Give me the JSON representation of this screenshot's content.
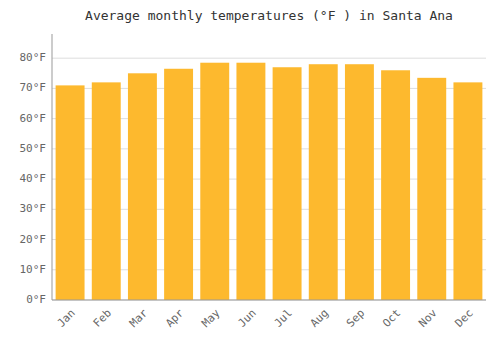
{
  "chart_data": {
    "type": "bar",
    "title": "Average monthly temperatures (°F ) in Santa Ana",
    "categories": [
      "Jan",
      "Feb",
      "Mar",
      "Apr",
      "May",
      "Jun",
      "Jul",
      "Aug",
      "Sep",
      "Oct",
      "Nov",
      "Dec"
    ],
    "values": [
      71,
      72,
      75,
      76.5,
      78.5,
      78.5,
      77,
      78,
      78,
      76,
      73.5,
      72
    ],
    "color": "#FDB92E",
    "ylim": [
      0,
      88
    ],
    "yticks": [
      {
        "value": 0,
        "label": "0°F"
      },
      {
        "value": 10,
        "label": "10°F"
      },
      {
        "value": 20,
        "label": "20°F"
      },
      {
        "value": 30,
        "label": "30°F"
      },
      {
        "value": 40,
        "label": "40°F"
      },
      {
        "value": 50,
        "label": "50°F"
      },
      {
        "value": 60,
        "label": "60°F"
      },
      {
        "value": 70,
        "label": "70°F"
      },
      {
        "value": 80,
        "label": "80°F"
      }
    ],
    "grid": true
  }
}
